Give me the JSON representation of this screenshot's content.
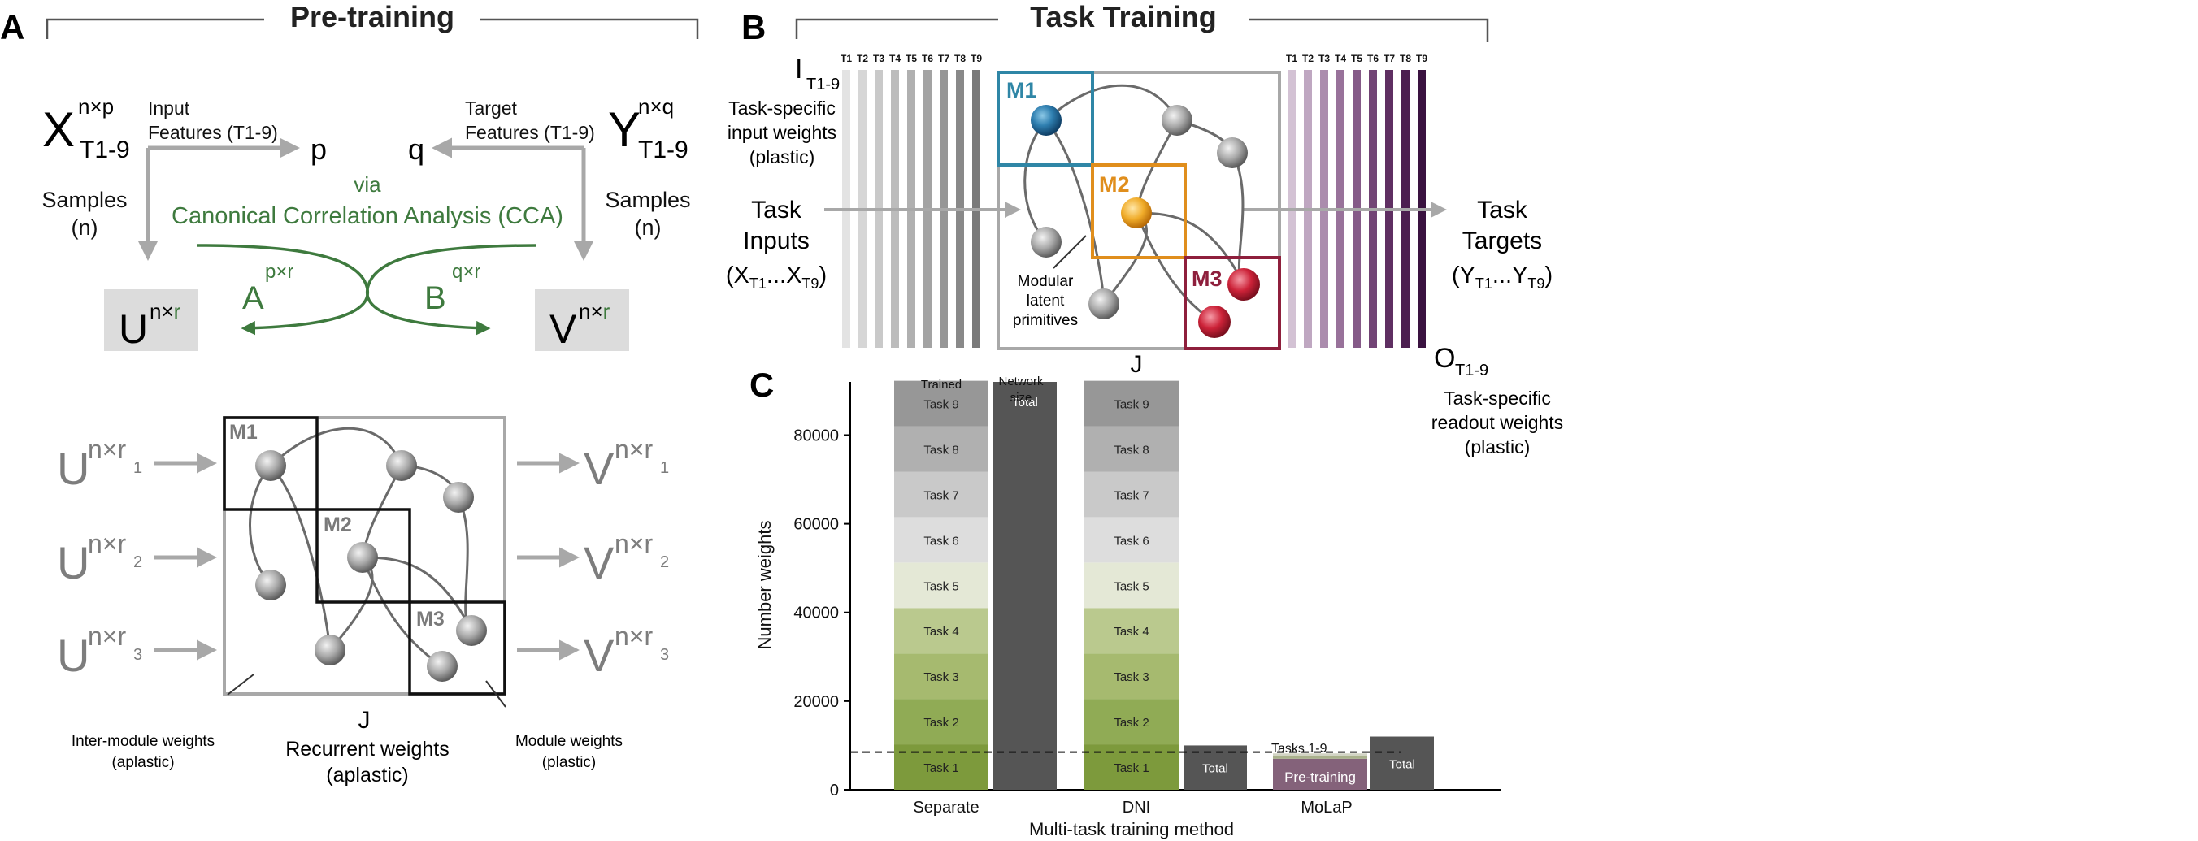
{
  "panelA": {
    "letter": "A",
    "title": "Pre-training",
    "x_sym": "X",
    "x_sup": "n×p",
    "x_sub": "T1-9",
    "y_sym": "Y",
    "y_sup": "n×q",
    "y_sub": "T1-9",
    "input_features_1": "Input",
    "input_features_2": "Features (T1-9)",
    "target_features_1": "Target",
    "target_features_2": "Features (T1-9)",
    "p": "p",
    "q": "q",
    "samples_left_1": "Samples",
    "samples_left_2": "(n)",
    "samples_right_1": "Samples",
    "samples_right_2": "(n)",
    "via": "via",
    "cca": "Canonical Correlation Analysis (CCA)",
    "a_label": "A",
    "a_sup": "p×r",
    "b_label": "B",
    "b_sup": "q×r",
    "u_box_sym": "U",
    "u_box_sup_nx": "n×",
    "u_box_sup_r": "r",
    "v_box_sym": "V",
    "v_box_sup_nx": "n×",
    "v_box_sup_r": "r",
    "u_rows": [
      {
        "sym": "U",
        "sup": "n×r",
        "sub": "1"
      },
      {
        "sym": "U",
        "sup": "n×r",
        "sub": "2"
      },
      {
        "sym": "U",
        "sup": "n×r",
        "sub": "3"
      }
    ],
    "v_rows": [
      {
        "sym": "V",
        "sup": "n×r",
        "sub": "1"
      },
      {
        "sym": "V",
        "sup": "n×r",
        "sub": "2"
      },
      {
        "sym": "V",
        "sup": "n×r",
        "sub": "3"
      }
    ],
    "modules": [
      "M1",
      "M2",
      "M3"
    ],
    "j_label": "J",
    "recurrent_1": "Recurrent weights",
    "recurrent_2": "(aplastic)",
    "inter_module_1": "Inter-module weights",
    "inter_module_2": "(aplastic)",
    "module_weights_1": "Module weights",
    "module_weights_2": "(plastic)"
  },
  "panelB": {
    "letter": "B",
    "title": "Task Training",
    "task_ticks": [
      "T1",
      "T2",
      "T3",
      "T4",
      "T5",
      "T6",
      "T7",
      "T8",
      "T9"
    ],
    "i_sym": "I",
    "i_sub": "T1-9",
    "input_w_1": "Task-specific",
    "input_w_2": "input weights",
    "input_w_3": "(plastic)",
    "task_inputs_1": "Task",
    "task_inputs_2": "Inputs",
    "task_inputs_x1": "(X",
    "task_inputs_s1": "T1",
    "task_inputs_mid": "...X",
    "task_inputs_s2": "T9",
    "task_inputs_end": ")",
    "task_targets_1": "Task",
    "task_targets_2": "Targets",
    "task_targets_y1": "(Y",
    "task_targets_s1": "T1",
    "task_targets_mid": "...Y",
    "task_targets_s2": "T9",
    "task_targets_end": ")",
    "modules": [
      "M1",
      "M2",
      "M3"
    ],
    "modular_1": "Modular",
    "modular_2": "latent",
    "modular_3": "primitives",
    "j_label": "J",
    "o_sym": "O",
    "o_sub": "T1-9",
    "readout_1": "Task-specific",
    "readout_2": "readout weights",
    "readout_3": "(plastic)",
    "colors": {
      "m1": "#2f86a6",
      "m2": "#e08e1c",
      "m3": "#8e1f3c",
      "input_bars": [
        "#e3e3e3",
        "#d6d6d6",
        "#c9c9c9",
        "#bcbcbc",
        "#b0b0b0",
        "#a3a3a3",
        "#969696",
        "#898989",
        "#7a7a7a"
      ],
      "output_bars": [
        "#d3c2d4",
        "#bfa7c1",
        "#ab8cad",
        "#98729a",
        "#855a88",
        "#724475",
        "#5f2f62",
        "#4c1e50",
        "#3a1240"
      ]
    }
  },
  "panelC": {
    "letter": "C",
    "trained_label": "Trained",
    "network_size_1": "Network",
    "network_size_2": "size",
    "tasks_1_9_label": "Tasks 1-9",
    "chart_data": {
      "type": "bar",
      "xlabel": "Multi-task training method",
      "ylabel": "Number weights",
      "categories": [
        "Separate",
        "DNI",
        "MoLaP"
      ],
      "yticks": [
        0,
        20000,
        40000,
        60000,
        80000
      ],
      "ytick_labels": [
        "0",
        "20000",
        "40000",
        "60000",
        "80000"
      ],
      "ylim": [
        0,
        92000
      ],
      "dashed_line_value": 8500,
      "stacks": [
        {
          "category": "Separate",
          "segments": [
            {
              "name": "Task 1",
              "value": 10250,
              "color": "#7d9a3c"
            },
            {
              "name": "Task 2",
              "value": 10250,
              "color": "#90ab55"
            },
            {
              "name": "Task 3",
              "value": 10250,
              "color": "#a6ba6f"
            },
            {
              "name": "Task 4",
              "value": 10250,
              "color": "#bac98e"
            },
            {
              "name": "Task 5",
              "value": 10250,
              "color": "#e4e8d6"
            },
            {
              "name": "Task 6",
              "value": 10250,
              "color": "#dddddd"
            },
            {
              "name": "Task 7",
              "value": 10250,
              "color": "#c9c9c9"
            },
            {
              "name": "Task 8",
              "value": 10250,
              "color": "#b0b0b0"
            },
            {
              "name": "Task 9",
              "value": 10250,
              "color": "#979797"
            }
          ]
        },
        {
          "category": "DNI",
          "segments": [
            {
              "name": "Task 1",
              "value": 10250,
              "color": "#7d9a3c"
            },
            {
              "name": "Task 2",
              "value": 10250,
              "color": "#90ab55"
            },
            {
              "name": "Task 3",
              "value": 10250,
              "color": "#a6ba6f"
            },
            {
              "name": "Task 4",
              "value": 10250,
              "color": "#bac98e"
            },
            {
              "name": "Task 5",
              "value": 10250,
              "color": "#e4e8d6"
            },
            {
              "name": "Task 6",
              "value": 10250,
              "color": "#dddddd"
            },
            {
              "name": "Task 7",
              "value": 10250,
              "color": "#c9c9c9"
            },
            {
              "name": "Task 8",
              "value": 10250,
              "color": "#b0b0b0"
            },
            {
              "name": "Task 9",
              "value": 10250,
              "color": "#979797"
            }
          ]
        },
        {
          "category": "MoLaP",
          "segments": [
            {
              "name": "Pre-training",
              "value": 7000,
              "color": "#84627a"
            },
            {
              "name": "",
              "value": 700,
              "color": "#a9b18c"
            },
            {
              "name": "",
              "value": 500,
              "color": "#d2d4c4"
            }
          ]
        }
      ],
      "totals": [
        {
          "category": "Separate",
          "name": "Total",
          "value": 92000,
          "color": "#555555"
        },
        {
          "category": "DNI",
          "name": "Total",
          "value": 10000,
          "color": "#555555"
        },
        {
          "category": "MoLaP",
          "name": "Total",
          "value": 12000,
          "color": "#555555"
        }
      ]
    }
  }
}
